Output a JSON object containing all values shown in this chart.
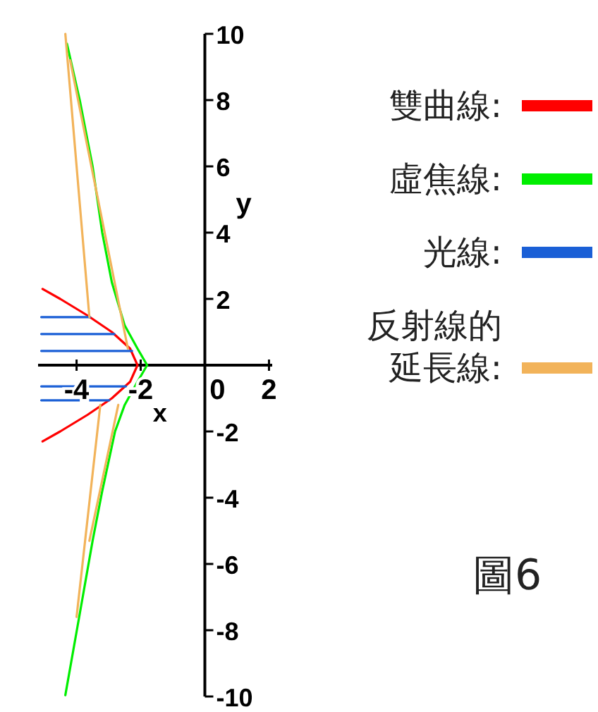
{
  "chart_data": {
    "type": "line",
    "xlabel": "x",
    "ylabel": "y",
    "xlim": [
      -5.2,
      2.1
    ],
    "ylim": [
      -10,
      10
    ],
    "xticks": [
      -4,
      -2,
      0,
      2
    ],
    "yticks": [
      -10,
      -8,
      -6,
      -4,
      -2,
      2,
      4,
      6,
      8,
      10
    ],
    "legend": "right",
    "annotations": [
      "圖6"
    ],
    "series": [
      {
        "name": "雙曲線:",
        "color": "#ff0000",
        "x": [
          -5.06,
          -4.51,
          -3.66,
          -2.9,
          -2.33,
          -2.1,
          -2.33,
          -2.9,
          -3.66,
          -4.51,
          -5.06
        ],
        "values": [
          2.3,
          2.0,
          1.5,
          1.0,
          0.5,
          0,
          -0.5,
          -1.0,
          -1.5,
          -2.0,
          -2.3
        ]
      },
      {
        "name": "虛焦線:",
        "color": "#00ee00",
        "x": [
          -4.3,
          -3.9,
          -3.5,
          -3.2,
          -2.9,
          -2.5,
          -2.1,
          -1.8,
          -2.1,
          -2.5,
          -2.8,
          -3.2,
          -3.5,
          -3.9,
          -4.35
        ],
        "values": [
          9.7,
          8.0,
          6.0,
          4.0,
          2.5,
          1.2,
          0.5,
          0,
          -0.5,
          -1.2,
          -2.0,
          -3.8,
          -5.3,
          -7.5,
          -9.96
        ]
      },
      {
        "name": "光線:",
        "color": "#1a5fd6",
        "x": [
          -5.1,
          -3.58,
          null,
          -5.1,
          -2.82,
          null,
          -5.1,
          -2.27,
          null,
          -5.1,
          -2.46,
          null,
          -5.1,
          -2.98
        ],
        "values": [
          1.45,
          1.45,
          null,
          0.94,
          0.94,
          null,
          0.43,
          0.43,
          null,
          -0.64,
          -0.64,
          null,
          -1.06,
          -1.06
        ]
      },
      {
        "name": "反射線的延長線:",
        "color": "#f2b35a",
        "x": [
          -4.35,
          -3.6,
          null,
          -4.2,
          -2.4,
          null,
          -3.26,
          -4.0,
          null,
          -2.7,
          -3.6
        ],
        "values": [
          10.0,
          1.45,
          null,
          9.2,
          0.5,
          null,
          -1.2,
          -7.6,
          null,
          -1.2,
          -5.3
        ]
      }
    ]
  }
}
